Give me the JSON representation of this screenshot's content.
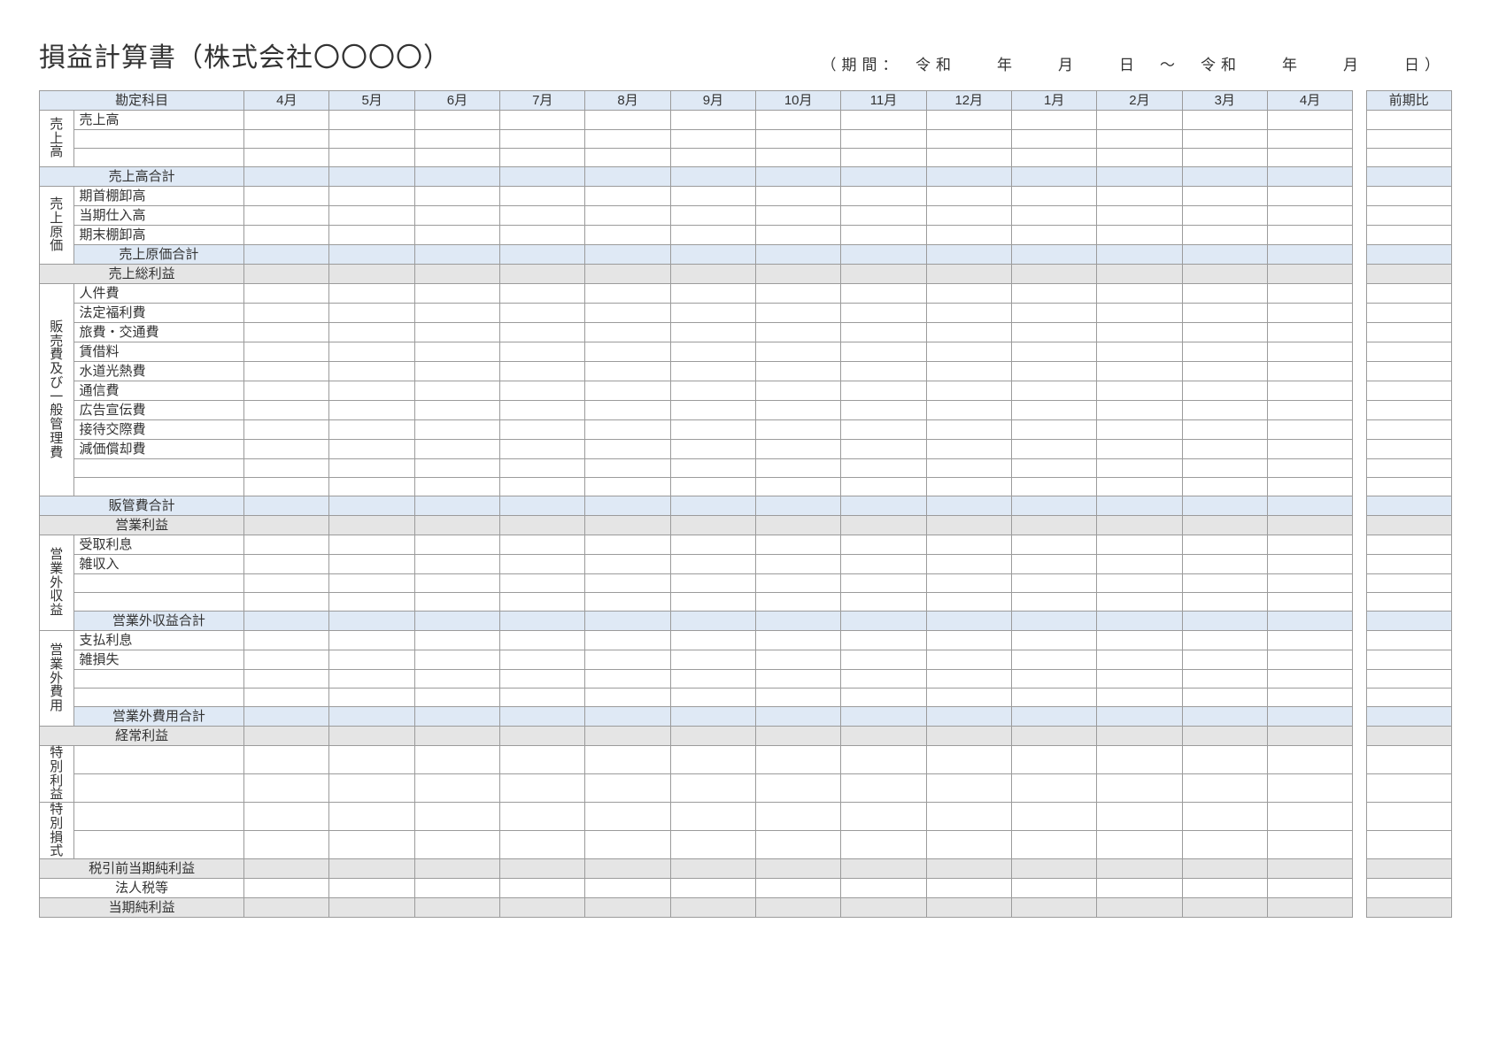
{
  "title": "損益計算書（株式会社〇〇〇〇）",
  "period": "（期間：　令和　　年　　月　　日　～　令和　　年　　月　　日）",
  "colors": {
    "header_bg": "#dfe9f5",
    "subtotal_bg": "#dfe9f5",
    "total_bg": "#e5e5e5",
    "border": "#9b9b9b",
    "page_bg": "#ffffff"
  },
  "columns": {
    "account_header": "勘定科目",
    "months": [
      "4月",
      "5月",
      "6月",
      "7月",
      "8月",
      "9月",
      "10月",
      "11月",
      "12月",
      "1月",
      "2月",
      "3月",
      "4月"
    ],
    "last_col": "前期比"
  },
  "sections": [
    {
      "side": "売上高",
      "rows": [
        {
          "type": "item",
          "label": "売上高"
        },
        {
          "type": "item",
          "label": ""
        },
        {
          "type": "item",
          "label": ""
        },
        {
          "type": "subtotal",
          "label": "売上高合計",
          "span_side": true
        }
      ]
    },
    {
      "side": "売上原価",
      "rows": [
        {
          "type": "item",
          "label": "期首棚卸高"
        },
        {
          "type": "item",
          "label": "当期仕入高"
        },
        {
          "type": "item",
          "label": "期末棚卸高"
        },
        {
          "type": "subtotal",
          "label": "売上原価合計"
        }
      ]
    },
    {
      "type": "total",
      "label": "売上総利益"
    },
    {
      "side": "販売費及び一般管理費",
      "rows": [
        {
          "type": "item",
          "label": "人件費"
        },
        {
          "type": "item",
          "label": "法定福利費"
        },
        {
          "type": "item",
          "label": "旅費・交通費"
        },
        {
          "type": "item",
          "label": "賃借料"
        },
        {
          "type": "item",
          "label": "水道光熱費"
        },
        {
          "type": "item",
          "label": "通信費"
        },
        {
          "type": "item",
          "label": "広告宣伝費"
        },
        {
          "type": "item",
          "label": "接待交際費"
        },
        {
          "type": "item",
          "label": "減価償却費"
        },
        {
          "type": "item",
          "label": ""
        },
        {
          "type": "item",
          "label": ""
        },
        {
          "type": "subtotal",
          "label": "販管費合計",
          "span_side": true
        }
      ]
    },
    {
      "type": "total",
      "label": "営業利益"
    },
    {
      "side": "営業外収益",
      "rows": [
        {
          "type": "item",
          "label": "受取利息"
        },
        {
          "type": "item",
          "label": "雑収入"
        },
        {
          "type": "item",
          "label": ""
        },
        {
          "type": "item",
          "label": ""
        },
        {
          "type": "subtotal",
          "label": "営業外収益合計"
        }
      ]
    },
    {
      "side": "営業外費用",
      "rows": [
        {
          "type": "item",
          "label": "支払利息"
        },
        {
          "type": "item",
          "label": "雑損失"
        },
        {
          "type": "item",
          "label": ""
        },
        {
          "type": "item",
          "label": ""
        },
        {
          "type": "subtotal",
          "label": "営業外費用合計"
        }
      ]
    },
    {
      "type": "total",
      "label": "経常利益"
    },
    {
      "side": "特別利益",
      "rows": [
        {
          "type": "item",
          "label": ""
        },
        {
          "type": "item",
          "label": ""
        }
      ]
    },
    {
      "side": "特別損式",
      "rows": [
        {
          "type": "item",
          "label": ""
        },
        {
          "type": "item",
          "label": ""
        }
      ]
    },
    {
      "type": "total",
      "label": "税引前当期純利益"
    },
    {
      "type": "total_plain",
      "label": "法人税等"
    },
    {
      "type": "total",
      "label": "当期純利益"
    }
  ]
}
